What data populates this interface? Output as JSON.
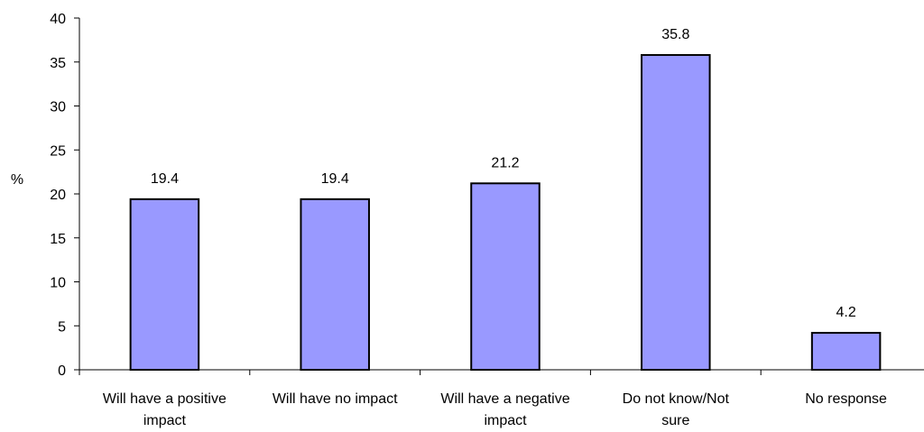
{
  "chart_data": {
    "type": "bar",
    "categories": [
      [
        "Will have a positive",
        "impact"
      ],
      [
        "Will have no impact"
      ],
      [
        "Will have a negative",
        "impact"
      ],
      [
        "Do not know/Not",
        "sure"
      ],
      [
        "No response"
      ]
    ],
    "values": [
      19.4,
      19.4,
      21.2,
      35.8,
      4.2
    ],
    "data_labels": [
      "19.4",
      "19.4",
      "21.2",
      "35.8",
      "4.2"
    ],
    "title": "",
    "xlabel": "",
    "ylabel": "%",
    "ylim": [
      0,
      40
    ],
    "yticks": [
      0,
      5,
      10,
      15,
      20,
      25,
      30,
      35,
      40
    ],
    "bar_color": "#9999ff",
    "bar_border_color": "#000000",
    "grid": false,
    "legend": "none"
  }
}
